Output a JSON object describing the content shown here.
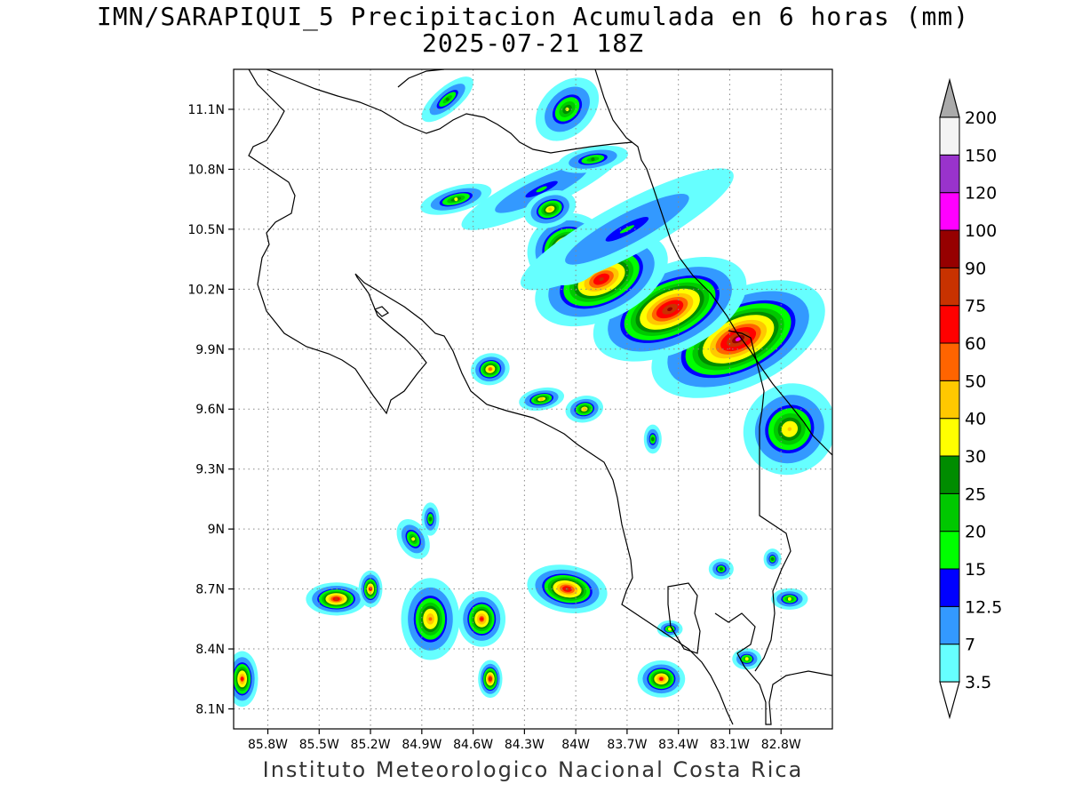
{
  "title": {
    "line1": "IMN/SARAPIQUI_5 Precipitacion Acumulada en 6 horas (mm)",
    "line2": "2025-07-21 18Z"
  },
  "credit": "Instituto Meteorologico Nacional Costa Rica",
  "map": {
    "lat_range": [
      8.0,
      11.3
    ],
    "lon_range": [
      -86.0,
      -82.5
    ],
    "lat_ticks": [
      {
        "value": 11.1,
        "label": "11.1N"
      },
      {
        "value": 10.8,
        "label": "10.8N"
      },
      {
        "value": 10.5,
        "label": "10.5N"
      },
      {
        "value": 10.2,
        "label": "10.2N"
      },
      {
        "value": 9.9,
        "label": "9.9N"
      },
      {
        "value": 9.6,
        "label": "9.6N"
      },
      {
        "value": 9.3,
        "label": "9.3N"
      },
      {
        "value": 9.0,
        "label": "9N"
      },
      {
        "value": 8.7,
        "label": "8.7N"
      },
      {
        "value": 8.4,
        "label": "8.4N"
      },
      {
        "value": 8.1,
        "label": "8.1N"
      }
    ],
    "lon_ticks": [
      {
        "value": -85.8,
        "label": "85.8W"
      },
      {
        "value": -85.5,
        "label": "85.5W"
      },
      {
        "value": -85.2,
        "label": "85.2W"
      },
      {
        "value": -84.9,
        "label": "84.9W"
      },
      {
        "value": -84.6,
        "label": "84.6W"
      },
      {
        "value": -84.3,
        "label": "84.3W"
      },
      {
        "value": -84.0,
        "label": "84W"
      },
      {
        "value": -83.7,
        "label": "83.7W"
      },
      {
        "value": -83.4,
        "label": "83.4W"
      },
      {
        "value": -83.1,
        "label": "83.1W"
      },
      {
        "value": -82.8,
        "label": "82.8W"
      }
    ],
    "grid": "dotted"
  },
  "colorbar": {
    "levels": [
      {
        "label": "3.5",
        "color": "#66ffff"
      },
      {
        "label": "7",
        "color": "#3399ff"
      },
      {
        "label": "12.5",
        "color": "#0000ff"
      },
      {
        "label": "15",
        "color": "#00ff00"
      },
      {
        "label": "20",
        "color": "#00c800"
      },
      {
        "label": "25",
        "color": "#008c00"
      },
      {
        "label": "30",
        "color": "#ffff00"
      },
      {
        "label": "40",
        "color": "#ffc800"
      },
      {
        "label": "50",
        "color": "#ff6400"
      },
      {
        "label": "60",
        "color": "#ff0000"
      },
      {
        "label": "75",
        "color": "#c83200"
      },
      {
        "label": "90",
        "color": "#960000"
      },
      {
        "label": "100",
        "color": "#ff00ff"
      },
      {
        "label": "120",
        "color": "#9933cc"
      },
      {
        "label": "150",
        "color": "#f4f4f4"
      },
      {
        "label": "200",
        "color": "#aaaaaa"
      }
    ],
    "low_end_color": "#ffffff"
  },
  "precip_cells": [
    {
      "lon": -83.05,
      "lat": 9.95,
      "peak": 100,
      "rx": 0.45,
      "ry": 0.2,
      "rot": 25
    },
    {
      "lon": -83.45,
      "lat": 10.1,
      "peak": 90,
      "rx": 0.4,
      "ry": 0.18,
      "rot": 25
    },
    {
      "lon": -83.85,
      "lat": 10.25,
      "peak": 75,
      "rx": 0.35,
      "ry": 0.17,
      "rot": 25
    },
    {
      "lon": -84.05,
      "lat": 10.4,
      "peak": 75,
      "rx": 0.2,
      "ry": 0.15,
      "rot": 20
    },
    {
      "lon": -82.75,
      "lat": 9.5,
      "peak": 40,
      "rx": 0.25,
      "ry": 0.2,
      "rot": 40
    },
    {
      "lon": -83.7,
      "lat": 10.5,
      "peak": 15,
      "rx": 0.75,
      "ry": 0.14,
      "rot": 28
    },
    {
      "lon": -84.2,
      "lat": 10.7,
      "peak": 15,
      "rx": 0.55,
      "ry": 0.1,
      "rot": 25
    },
    {
      "lon": -84.15,
      "lat": 10.6,
      "peak": 40,
      "rx": 0.14,
      "ry": 0.08,
      "rot": 20
    },
    {
      "lon": -84.7,
      "lat": 10.65,
      "peak": 30,
      "rx": 0.2,
      "ry": 0.06,
      "rot": 15
    },
    {
      "lon": -84.05,
      "lat": 11.1,
      "peak": 30,
      "rx": 0.2,
      "ry": 0.12,
      "rot": 45
    },
    {
      "lon": -84.75,
      "lat": 11.15,
      "peak": 25,
      "rx": 0.18,
      "ry": 0.06,
      "rot": 40
    },
    {
      "lon": -83.9,
      "lat": 10.85,
      "peak": 25,
      "rx": 0.2,
      "ry": 0.06,
      "rot": 10
    },
    {
      "lon": -84.5,
      "lat": 9.8,
      "peak": 50,
      "rx": 0.1,
      "ry": 0.07,
      "rot": 10
    },
    {
      "lon": -84.2,
      "lat": 9.65,
      "peak": 40,
      "rx": 0.12,
      "ry": 0.05,
      "rot": 10
    },
    {
      "lon": -83.95,
      "lat": 9.6,
      "peak": 40,
      "rx": 0.1,
      "ry": 0.06,
      "rot": 10
    },
    {
      "lon": -83.55,
      "lat": 9.45,
      "peak": 25,
      "rx": 0.05,
      "ry": 0.07,
      "rot": 0
    },
    {
      "lon": -84.85,
      "lat": 8.55,
      "peak": 50,
      "rx": 0.15,
      "ry": 0.18,
      "rot": 0
    },
    {
      "lon": -84.55,
      "lat": 8.55,
      "peak": 60,
      "rx": 0.12,
      "ry": 0.12,
      "rot": 0
    },
    {
      "lon": -85.4,
      "lat": 8.65,
      "peak": 75,
      "rx": 0.15,
      "ry": 0.07,
      "rot": 0
    },
    {
      "lon": -85.2,
      "lat": 8.7,
      "peak": 60,
      "rx": 0.06,
      "ry": 0.08,
      "rot": 0
    },
    {
      "lon": -84.05,
      "lat": 8.7,
      "peak": 75,
      "rx": 0.2,
      "ry": 0.1,
      "rot": -10
    },
    {
      "lon": -84.5,
      "lat": 8.25,
      "peak": 75,
      "rx": 0.06,
      "ry": 0.08,
      "rot": 0
    },
    {
      "lon": -83.5,
      "lat": 8.25,
      "peak": 60,
      "rx": 0.12,
      "ry": 0.08,
      "rot": 0
    },
    {
      "lon": -85.95,
      "lat": 8.25,
      "peak": 60,
      "rx": 0.08,
      "ry": 0.12,
      "rot": 0
    },
    {
      "lon": -84.95,
      "lat": 8.95,
      "peak": 30,
      "rx": 0.08,
      "ry": 0.1,
      "rot": 30
    },
    {
      "lon": -84.85,
      "lat": 9.05,
      "peak": 25,
      "rx": 0.05,
      "ry": 0.08,
      "rot": 0
    },
    {
      "lon": -82.75,
      "lat": 8.65,
      "peak": 30,
      "rx": 0.1,
      "ry": 0.05,
      "rot": 0
    },
    {
      "lon": -83.15,
      "lat": 8.8,
      "peak": 25,
      "rx": 0.07,
      "ry": 0.05,
      "rot": 0
    },
    {
      "lon": -83.45,
      "lat": 8.5,
      "peak": 30,
      "rx": 0.07,
      "ry": 0.04,
      "rot": 0
    },
    {
      "lon": -83.0,
      "lat": 8.35,
      "peak": 30,
      "rx": 0.08,
      "ry": 0.05,
      "rot": 0
    },
    {
      "lon": -82.85,
      "lat": 8.85,
      "peak": 25,
      "rx": 0.05,
      "ry": 0.05,
      "rot": 0
    }
  ]
}
